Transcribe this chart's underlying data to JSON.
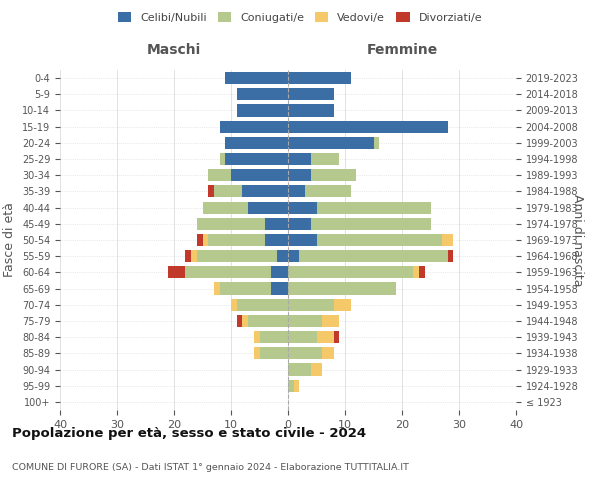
{
  "age_groups": [
    "100+",
    "95-99",
    "90-94",
    "85-89",
    "80-84",
    "75-79",
    "70-74",
    "65-69",
    "60-64",
    "55-59",
    "50-54",
    "45-49",
    "40-44",
    "35-39",
    "30-34",
    "25-29",
    "20-24",
    "15-19",
    "10-14",
    "5-9",
    "0-4"
  ],
  "birth_years": [
    "≤ 1923",
    "1924-1928",
    "1929-1933",
    "1934-1938",
    "1939-1943",
    "1944-1948",
    "1949-1953",
    "1954-1958",
    "1959-1963",
    "1964-1968",
    "1969-1973",
    "1974-1978",
    "1979-1983",
    "1984-1988",
    "1989-1993",
    "1994-1998",
    "1999-2003",
    "2004-2008",
    "2009-2013",
    "2014-2018",
    "2019-2023"
  ],
  "male": {
    "celibi": [
      0,
      0,
      0,
      0,
      0,
      0,
      0,
      3,
      3,
      2,
      4,
      4,
      7,
      8,
      10,
      11,
      11,
      12,
      9,
      9,
      11
    ],
    "coniugati": [
      0,
      0,
      0,
      5,
      5,
      7,
      9,
      9,
      15,
      14,
      10,
      12,
      8,
      5,
      4,
      1,
      0,
      0,
      0,
      0,
      0
    ],
    "vedovi": [
      0,
      0,
      0,
      1,
      1,
      1,
      1,
      1,
      0,
      1,
      1,
      0,
      0,
      0,
      0,
      0,
      0,
      0,
      0,
      0,
      0
    ],
    "divorziati": [
      0,
      0,
      0,
      0,
      0,
      1,
      0,
      0,
      3,
      1,
      1,
      0,
      0,
      1,
      0,
      0,
      0,
      0,
      0,
      0,
      0
    ]
  },
  "female": {
    "nubili": [
      0,
      0,
      0,
      0,
      0,
      0,
      0,
      0,
      0,
      2,
      5,
      4,
      5,
      3,
      4,
      4,
      15,
      28,
      8,
      8,
      11
    ],
    "coniugate": [
      0,
      1,
      4,
      6,
      5,
      6,
      8,
      19,
      22,
      26,
      22,
      21,
      20,
      8,
      8,
      5,
      1,
      0,
      0,
      0,
      0
    ],
    "vedove": [
      0,
      1,
      2,
      2,
      3,
      3,
      3,
      0,
      1,
      0,
      2,
      0,
      0,
      0,
      0,
      0,
      0,
      0,
      0,
      0,
      0
    ],
    "divorziate": [
      0,
      0,
      0,
      0,
      1,
      0,
      0,
      0,
      1,
      1,
      0,
      0,
      0,
      0,
      0,
      0,
      0,
      0,
      0,
      0,
      0
    ]
  },
  "colors": {
    "celibi_nubili": "#3a6ea5",
    "coniugati": "#b5c98e",
    "vedovi": "#f5c96a",
    "divorziati": "#c0392b"
  },
  "xlim": 40,
  "title": "Popolazione per età, sesso e stato civile - 2024",
  "subtitle": "COMUNE DI FURORE (SA) - Dati ISTAT 1° gennaio 2024 - Elaborazione TUTTITALIA.IT",
  "ylabel_left": "Fasce di età",
  "ylabel_right": "Anni di nascita",
  "xlabel_male": "Maschi",
  "xlabel_female": "Femmine",
  "legend_labels": [
    "Celibi/Nubili",
    "Coniugati/e",
    "Vedovi/e",
    "Divorziati/e"
  ],
  "background_color": "#ffffff",
  "grid_color": "#cccccc"
}
